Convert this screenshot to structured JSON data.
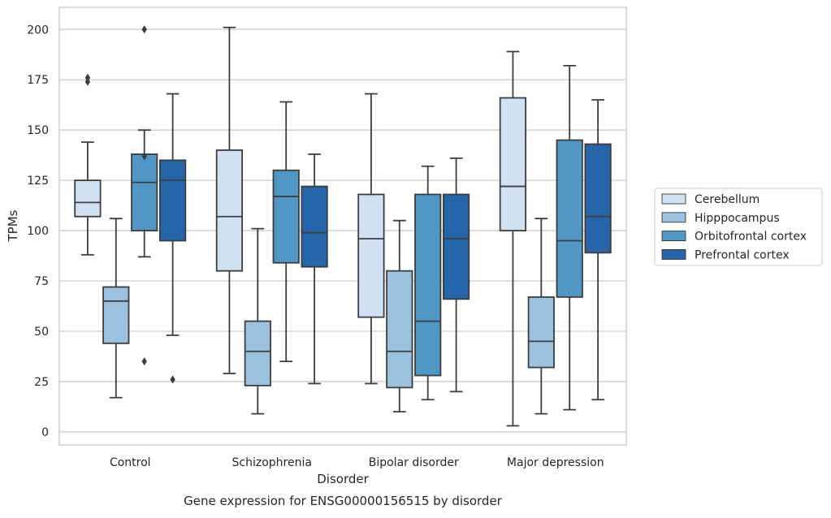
{
  "chart_data": {
    "type": "box",
    "xlabel": "Disorder",
    "ylabel": "TPMs",
    "caption": "Gene expression for ENSG00000156515 by disorder",
    "ylim": [
      -6.5,
      211
    ],
    "yticks": [
      0,
      25,
      50,
      75,
      100,
      125,
      150,
      175,
      200
    ],
    "grid": true,
    "legend_placement": "center-right outside",
    "categories": [
      "Control",
      "Schizophrenia",
      "Bipolar disorder",
      "Major depression"
    ],
    "series": [
      {
        "name": "Cerebellum",
        "color": "#d0e1f2",
        "boxes": [
          {
            "whislo": 88,
            "q1": 107,
            "med": 114,
            "q3": 125,
            "whishi": 144,
            "fliers": [
              174,
              176
            ]
          },
          {
            "whislo": 29,
            "q1": 80,
            "med": 107,
            "q3": 140,
            "whishi": 201,
            "fliers": []
          },
          {
            "whislo": 24,
            "q1": 57,
            "med": 96,
            "q3": 118,
            "whishi": 168,
            "fliers": []
          },
          {
            "whislo": 3,
            "q1": 100,
            "med": 122,
            "q3": 166,
            "whishi": 189,
            "fliers": []
          }
        ]
      },
      {
        "name": "Hipppocampus",
        "color": "#9ac1dd",
        "boxes": [
          {
            "whislo": 17,
            "q1": 44,
            "med": 65,
            "q3": 72,
            "whishi": 106,
            "fliers": []
          },
          {
            "whislo": 9,
            "q1": 23,
            "med": 40,
            "q3": 55,
            "whishi": 101,
            "fliers": []
          },
          {
            "whislo": 10,
            "q1": 22,
            "med": 40,
            "q3": 80,
            "whishi": 105,
            "fliers": []
          },
          {
            "whislo": 9,
            "q1": 32,
            "med": 45,
            "q3": 67,
            "whishi": 106,
            "fliers": []
          }
        ]
      },
      {
        "name": "Orbitofrontal cortex",
        "color": "#5097c6",
        "boxes": [
          {
            "whislo": 87,
            "q1": 100,
            "med": 124,
            "q3": 138,
            "whishi": 150,
            "fliers": [
              137,
              35,
              200
            ]
          },
          {
            "whislo": 35,
            "q1": 84,
            "med": 117,
            "q3": 130,
            "whishi": 164,
            "fliers": []
          },
          {
            "whislo": 16,
            "q1": 28,
            "med": 55,
            "q3": 118,
            "whishi": 132,
            "fliers": []
          },
          {
            "whislo": 11,
            "q1": 67,
            "med": 95,
            "q3": 145,
            "whishi": 182,
            "fliers": []
          }
        ]
      },
      {
        "name": "Prefrontal cortex",
        "color": "#2565a9",
        "boxes": [
          {
            "whislo": 48,
            "q1": 95,
            "med": 125,
            "q3": 135,
            "whishi": 168,
            "fliers": [
              26
            ]
          },
          {
            "whislo": 24,
            "q1": 82,
            "med": 99,
            "q3": 122,
            "whishi": 138,
            "fliers": []
          },
          {
            "whislo": 20,
            "q1": 66,
            "med": 96,
            "q3": 118,
            "whishi": 136,
            "fliers": []
          },
          {
            "whislo": 16,
            "q1": 89,
            "med": 107,
            "q3": 143,
            "whishi": 165,
            "fliers": []
          }
        ]
      }
    ]
  }
}
